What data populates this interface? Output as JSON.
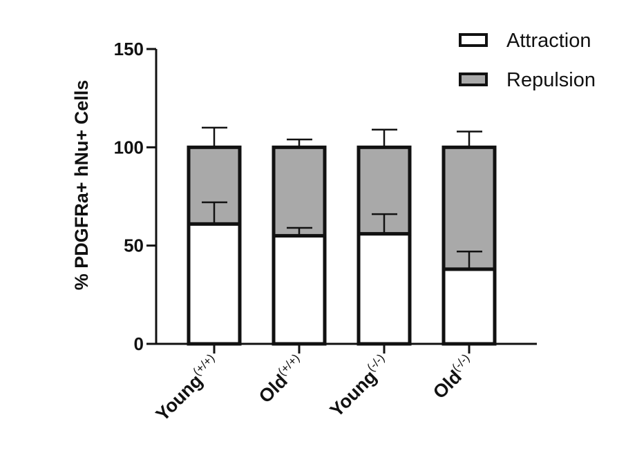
{
  "chart_data": {
    "type": "bar",
    "stacked": true,
    "categories": [
      {
        "name": "Young",
        "sup": "(+/+)"
      },
      {
        "name": "Old",
        "sup": "(+/+)"
      },
      {
        "name": "Young",
        "sup": "(-/-)"
      },
      {
        "name": "Old",
        "sup": "(-/-)"
      }
    ],
    "series": [
      {
        "name": "Attraction",
        "color": "#ffffff",
        "values": [
          61,
          55,
          56,
          38
        ],
        "error": [
          11,
          4,
          10,
          9
        ]
      },
      {
        "name": "Repulsion",
        "color": "#a9a9a9",
        "values": [
          39,
          45,
          44,
          62
        ],
        "error": [
          10,
          4,
          9,
          8
        ]
      }
    ],
    "ylabel": "% PDGFRa+ hNu+ Cells",
    "ylim": [
      0,
      150
    ],
    "yticks": [
      0,
      50,
      100,
      150
    ],
    "legend_position": "top-right",
    "grid": false
  }
}
